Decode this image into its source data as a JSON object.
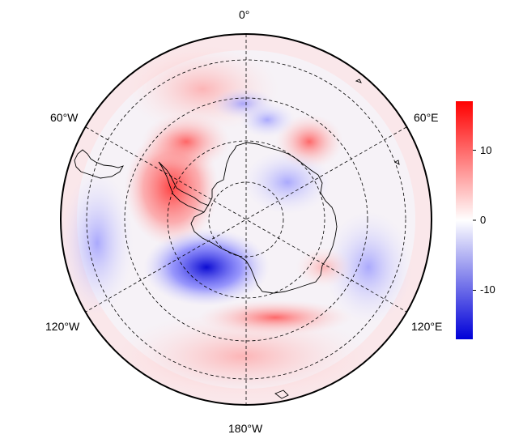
{
  "map": {
    "projection": "south-polar-stereographic",
    "longitude_labels": {
      "top": "0°",
      "upper_left": "60°W",
      "upper_right": "60°E",
      "lower_left": "120°W",
      "lower_right": "120°E",
      "bottom": "180°W"
    },
    "graticule_style": "dashed",
    "anomaly_features": [
      {
        "name": "positive-anomaly-antarctic-peninsula",
        "sign": "positive",
        "approx_value": 14
      },
      {
        "name": "negative-anomaly-amundsen-ross-sea",
        "sign": "negative",
        "approx_value": -14
      },
      {
        "name": "positive-anomaly-east-antarctic-coast",
        "sign": "positive",
        "approx_value": 10
      },
      {
        "name": "positive-anomaly-ross-ice-shelf-ring",
        "sign": "positive",
        "approx_value": 6
      },
      {
        "name": "negative-anomaly-east-antarctic-interior",
        "sign": "negative",
        "approx_value": -5
      },
      {
        "name": "negative-anomaly-weddell-sea",
        "sign": "negative",
        "approx_value": -4
      }
    ]
  },
  "colorbar": {
    "colors": {
      "low": "#0000d8",
      "mid": "#ffffff",
      "high": "#ff0000"
    },
    "range": [
      -17,
      17
    ],
    "ticks": [
      {
        "value": 10,
        "label": "10"
      },
      {
        "value": 0,
        "label": "0"
      },
      {
        "value": -10,
        "label": "-10"
      }
    ]
  }
}
